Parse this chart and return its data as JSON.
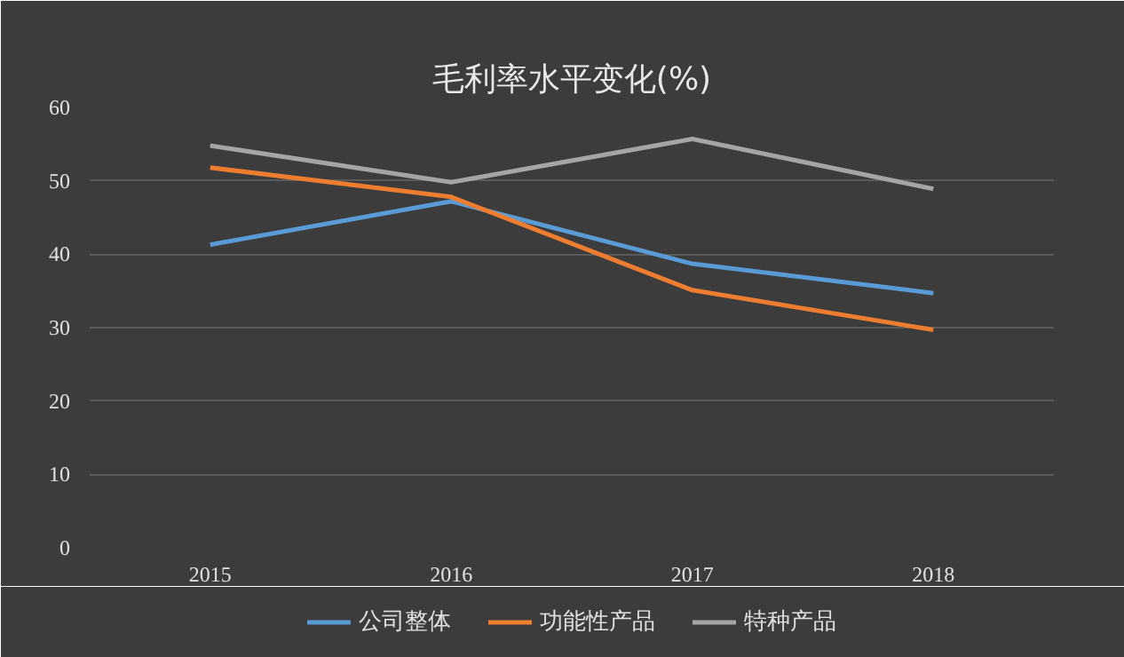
{
  "chart_data": {
    "type": "line",
    "title": "毛利率水平变化(%)",
    "categories": [
      "2015",
      "2016",
      "2017",
      "2018"
    ],
    "series": [
      {
        "name": "公司整体",
        "color": "#5b9bd5",
        "values": [
          41.3,
          47.2,
          38.7,
          34.7
        ]
      },
      {
        "name": "功能性产品",
        "color": "#ed7d31",
        "values": [
          51.8,
          47.8,
          35.1,
          29.7
        ]
      },
      {
        "name": "特种产品",
        "color": "#a5a5a5",
        "values": [
          54.8,
          49.8,
          55.7,
          48.9
        ]
      }
    ],
    "ylim": [
      0,
      60
    ],
    "yticks": [
      0,
      10,
      20,
      30,
      40,
      50,
      60
    ],
    "grid": "y",
    "legend": "bottom",
    "marker": "none",
    "line_style": "solid"
  }
}
